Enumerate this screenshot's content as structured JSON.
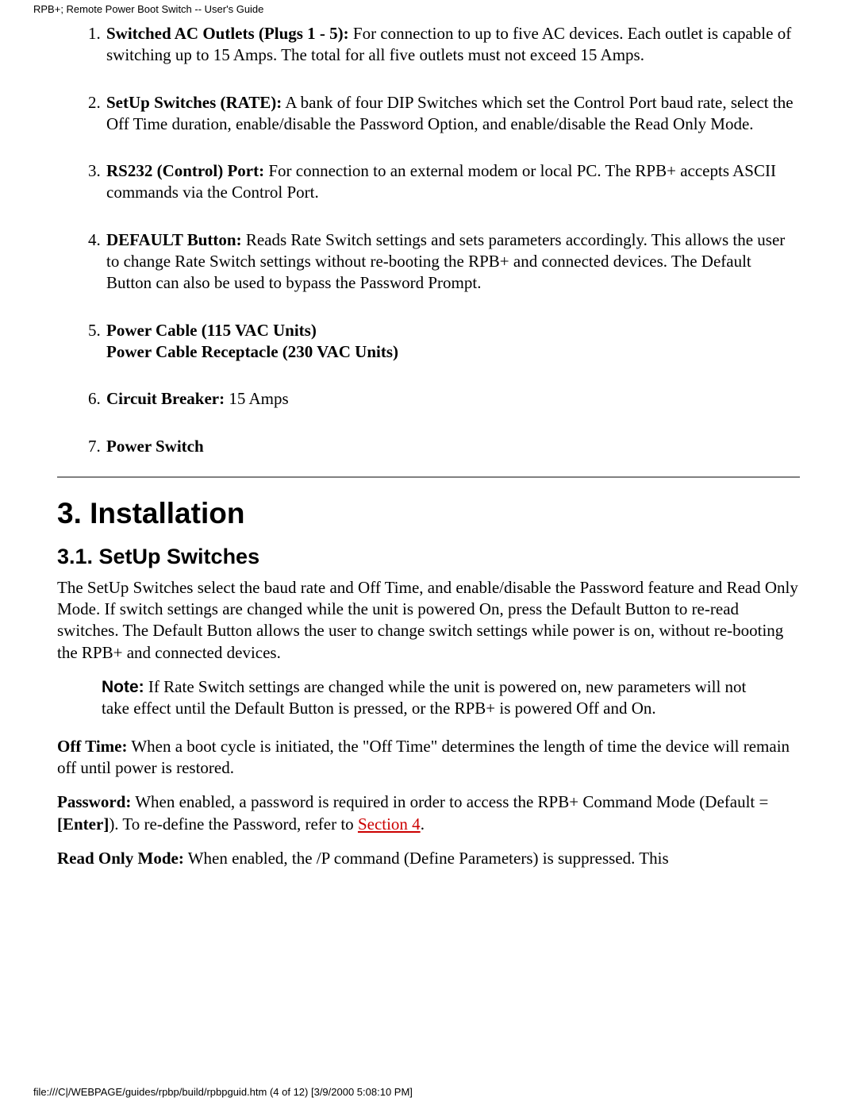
{
  "header": {
    "title": "RPB+; Remote Power Boot Switch -- User's Guide"
  },
  "list": {
    "items": [
      {
        "lead": "Switched AC Outlets (Plugs 1 - 5):",
        "tail": "  For connection to up to five AC devices.  Each outlet is capable of switching up to 15 Amps.  The total for all five outlets must not exceed 15 Amps."
      },
      {
        "lead": "SetUp Switches (RATE):",
        "tail": "  A bank of four DIP Switches which set the Control Port baud rate, select the Off Time duration, enable/disable the Password Option, and enable/disable the Read Only Mode."
      },
      {
        "lead": "RS232 (Control) Port:",
        "tail": "  For connection to an external modem or local PC.  The RPB+ accepts ASCII commands via the Control Port."
      },
      {
        "lead": "DEFAULT Button:",
        "tail": "  Reads Rate Switch settings and sets parameters accordingly.  This allows the user to change Rate Switch settings without re-booting the RPB+ and connected devices. The Default Button can also be used to bypass the Password Prompt."
      },
      {
        "lead": "Power Cable (115 VAC Units)",
        "lead2": "Power Cable Receptacle (230 VAC Units)",
        "tail": ""
      },
      {
        "lead": "Circuit Breaker:",
        "tail": "  15 Amps"
      },
      {
        "lead": "Power Switch",
        "tail": ""
      }
    ]
  },
  "section": {
    "heading": "3.  Installation",
    "sub_heading": "3.1.  SetUp Switches",
    "intro": "The SetUp Switches select the baud rate and Off Time, and enable/disable the Password feature and Read Only Mode.  If switch settings are changed while the unit is powered On, press the Default Button to re-read switches.  The Default Button allows the user to change switch settings while power is on, without re-booting the RPB+ and connected devices.",
    "note_label": "Note:",
    "note_body": "  If Rate Switch settings are changed while the unit is powered on, new parameters will not take effect until the Default Button is pressed, or the RPB+ is powered Off and On.",
    "offtime_lead": "Off Time:",
    "offtime_body": "  When a boot cycle is initiated, the \"Off Time\" determines the length of time the device will remain off until power is restored.",
    "password_lead": "Password:",
    "password_body_pre": "  When enabled, a password is required in order to access the RPB+ Command Mode (Default = ",
    "password_default": "[Enter]",
    "password_body_mid": ").  To re-define the Password, refer to ",
    "password_link_text": "Section 4",
    "password_body_post": ".",
    "readonly_lead": "Read Only Mode:",
    "readonly_body": " When enabled, the /P command (Define Parameters) is suppressed. This"
  },
  "footer": {
    "line": "file:///C|/WEBPAGE/guides/rpbp/build/rpbpguid.htm (4 of 12) [3/9/2000 5:08:10 PM]"
  }
}
